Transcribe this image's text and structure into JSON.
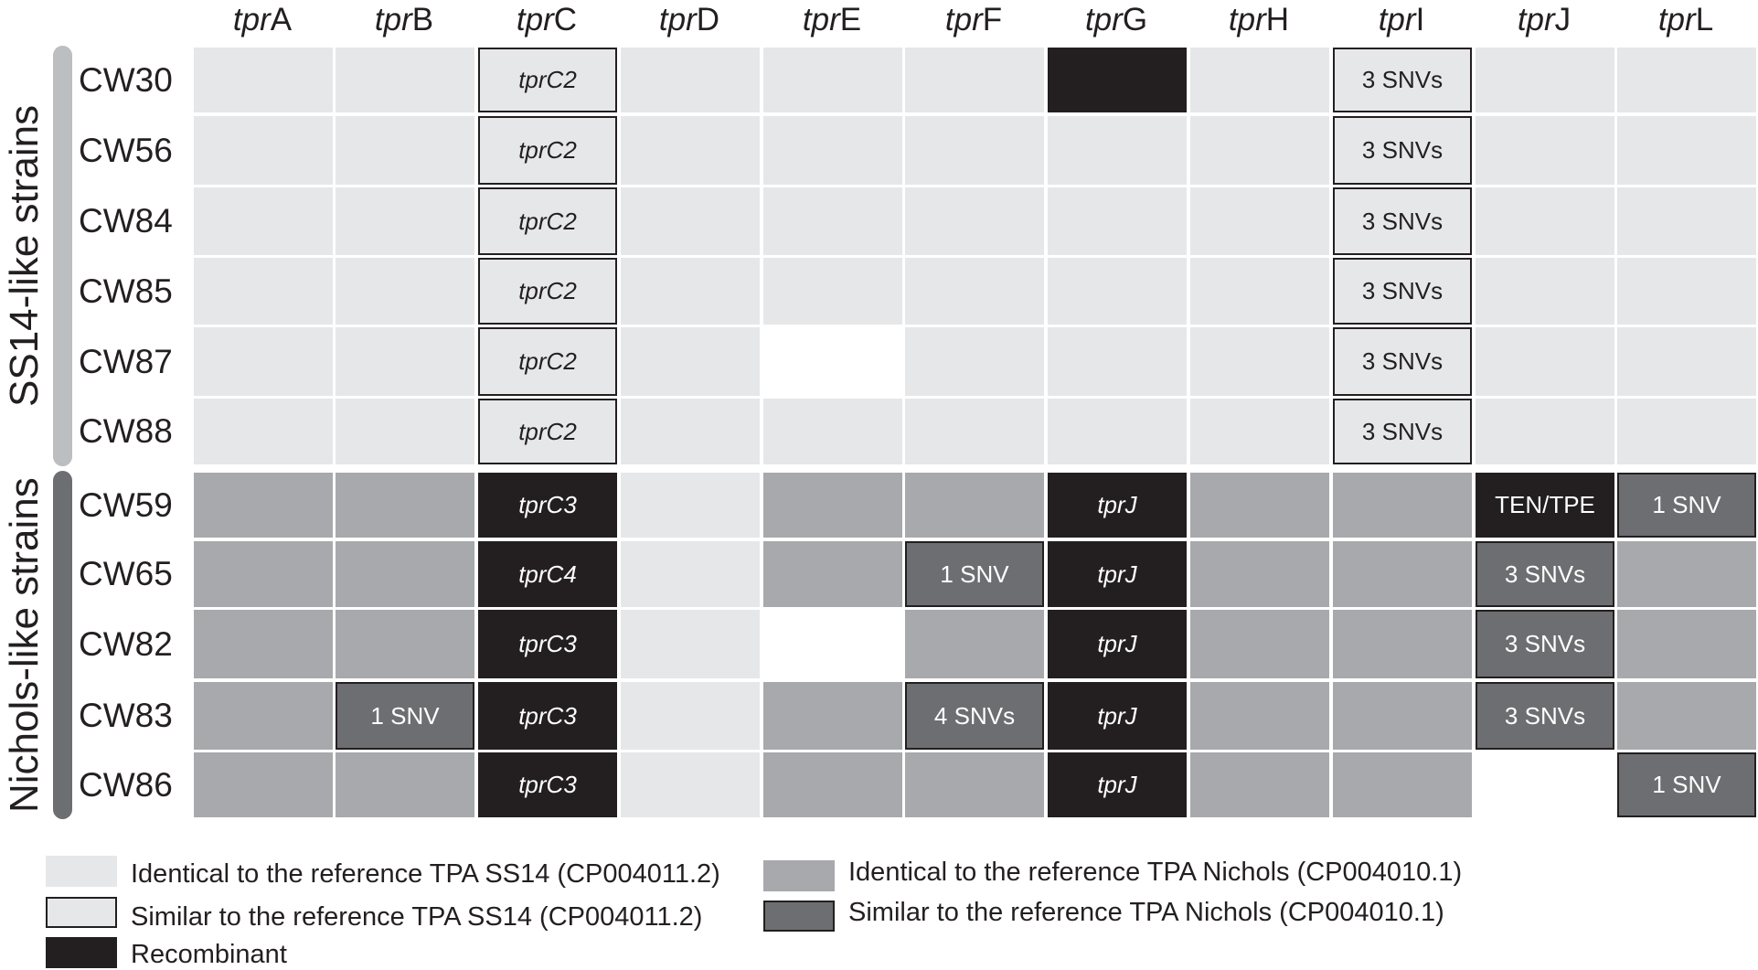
{
  "colors": {
    "ss14_identical": "#e6e7e8",
    "ss14_similar": "#e6e7e8",
    "nichols_identical": "#a7a9ac",
    "nichols_similar": "#6d6e71",
    "recombinant": "#231f20",
    "missing": "#ffffff",
    "light_text": "#ffffff",
    "dark_text": "#231f20"
  },
  "columns": [
    {
      "prefix": "tpr",
      "suffix": "A"
    },
    {
      "prefix": "tpr",
      "suffix": "B"
    },
    {
      "prefix": "tpr",
      "suffix": "C"
    },
    {
      "prefix": "tpr",
      "suffix": "D"
    },
    {
      "prefix": "tpr",
      "suffix": "E"
    },
    {
      "prefix": "tpr",
      "suffix": "F"
    },
    {
      "prefix": "tpr",
      "suffix": "G"
    },
    {
      "prefix": "tpr",
      "suffix": "H"
    },
    {
      "prefix": "tpr",
      "suffix": "I"
    },
    {
      "prefix": "tpr",
      "suffix": "J"
    },
    {
      "prefix": "tpr",
      "suffix": "L"
    }
  ],
  "groups": [
    {
      "label": "SS14-like strains",
      "bar_color": "#bcbec0",
      "rows": [
        0,
        5
      ]
    },
    {
      "label": "Nichols-like strains",
      "bar_color": "#6d6e71",
      "rows": [
        6,
        10
      ]
    }
  ],
  "rows": [
    {
      "strain": "CW30",
      "cells": [
        {
          "type": "ss14_identical"
        },
        {
          "type": "ss14_identical"
        },
        {
          "type": "ss14_similar",
          "text": "tprC2",
          "italic": true
        },
        {
          "type": "ss14_identical"
        },
        {
          "type": "ss14_identical"
        },
        {
          "type": "ss14_identical"
        },
        {
          "type": "recombinant"
        },
        {
          "type": "ss14_identical"
        },
        {
          "type": "ss14_similar",
          "text": "3 SNVs"
        },
        {
          "type": "ss14_identical"
        },
        {
          "type": "ss14_identical"
        }
      ]
    },
    {
      "strain": "CW56",
      "cells": [
        {
          "type": "ss14_identical"
        },
        {
          "type": "ss14_identical"
        },
        {
          "type": "ss14_similar",
          "text": "tprC2",
          "italic": true
        },
        {
          "type": "ss14_identical"
        },
        {
          "type": "ss14_identical"
        },
        {
          "type": "ss14_identical"
        },
        {
          "type": "ss14_identical"
        },
        {
          "type": "ss14_identical"
        },
        {
          "type": "ss14_similar",
          "text": "3 SNVs"
        },
        {
          "type": "ss14_identical"
        },
        {
          "type": "ss14_identical"
        }
      ]
    },
    {
      "strain": "CW84",
      "cells": [
        {
          "type": "ss14_identical"
        },
        {
          "type": "ss14_identical"
        },
        {
          "type": "ss14_similar",
          "text": "tprC2",
          "italic": true
        },
        {
          "type": "ss14_identical"
        },
        {
          "type": "ss14_identical"
        },
        {
          "type": "ss14_identical"
        },
        {
          "type": "ss14_identical"
        },
        {
          "type": "ss14_identical"
        },
        {
          "type": "ss14_similar",
          "text": "3 SNVs"
        },
        {
          "type": "ss14_identical"
        },
        {
          "type": "ss14_identical"
        }
      ]
    },
    {
      "strain": "CW85",
      "cells": [
        {
          "type": "ss14_identical"
        },
        {
          "type": "ss14_identical"
        },
        {
          "type": "ss14_similar",
          "text": "tprC2",
          "italic": true
        },
        {
          "type": "ss14_identical"
        },
        {
          "type": "ss14_identical"
        },
        {
          "type": "ss14_identical"
        },
        {
          "type": "ss14_identical"
        },
        {
          "type": "ss14_identical"
        },
        {
          "type": "ss14_similar",
          "text": "3 SNVs"
        },
        {
          "type": "ss14_identical"
        },
        {
          "type": "ss14_identical"
        }
      ]
    },
    {
      "strain": "CW87",
      "cells": [
        {
          "type": "ss14_identical"
        },
        {
          "type": "ss14_identical"
        },
        {
          "type": "ss14_similar",
          "text": "tprC2",
          "italic": true
        },
        {
          "type": "ss14_identical"
        },
        {
          "type": "missing"
        },
        {
          "type": "ss14_identical"
        },
        {
          "type": "ss14_identical"
        },
        {
          "type": "ss14_identical"
        },
        {
          "type": "ss14_similar",
          "text": "3 SNVs"
        },
        {
          "type": "ss14_identical"
        },
        {
          "type": "ss14_identical"
        }
      ]
    },
    {
      "strain": "CW88",
      "cells": [
        {
          "type": "ss14_identical"
        },
        {
          "type": "ss14_identical"
        },
        {
          "type": "ss14_similar",
          "text": "tprC2",
          "italic": true
        },
        {
          "type": "ss14_identical"
        },
        {
          "type": "ss14_identical"
        },
        {
          "type": "ss14_identical"
        },
        {
          "type": "ss14_identical"
        },
        {
          "type": "ss14_identical"
        },
        {
          "type": "ss14_similar",
          "text": "3 SNVs"
        },
        {
          "type": "ss14_identical"
        },
        {
          "type": "ss14_identical"
        }
      ]
    },
    {
      "strain": "CW59",
      "cells": [
        {
          "type": "nichols_identical"
        },
        {
          "type": "nichols_identical"
        },
        {
          "type": "recombinant",
          "text": "tprC3",
          "italic": true
        },
        {
          "type": "ss14_identical"
        },
        {
          "type": "nichols_identical"
        },
        {
          "type": "nichols_identical"
        },
        {
          "type": "recombinant",
          "text": "tprJ",
          "italic": true
        },
        {
          "type": "nichols_identical"
        },
        {
          "type": "nichols_identical"
        },
        {
          "type": "recombinant",
          "text": "TEN/TPE"
        },
        {
          "type": "nichols_similar",
          "text": "1 SNV"
        }
      ]
    },
    {
      "strain": "CW65",
      "cells": [
        {
          "type": "nichols_identical"
        },
        {
          "type": "nichols_identical"
        },
        {
          "type": "recombinant",
          "text": "tprC4",
          "italic": true
        },
        {
          "type": "ss14_identical"
        },
        {
          "type": "nichols_identical"
        },
        {
          "type": "nichols_similar",
          "text": "1 SNV"
        },
        {
          "type": "recombinant",
          "text": "tprJ",
          "italic": true
        },
        {
          "type": "nichols_identical"
        },
        {
          "type": "nichols_identical"
        },
        {
          "type": "nichols_similar",
          "text": "3 SNVs"
        },
        {
          "type": "nichols_identical"
        }
      ]
    },
    {
      "strain": "CW82",
      "cells": [
        {
          "type": "nichols_identical"
        },
        {
          "type": "nichols_identical"
        },
        {
          "type": "recombinant",
          "text": "tprC3",
          "italic": true
        },
        {
          "type": "ss14_identical"
        },
        {
          "type": "missing"
        },
        {
          "type": "nichols_identical"
        },
        {
          "type": "recombinant",
          "text": "tprJ",
          "italic": true
        },
        {
          "type": "nichols_identical"
        },
        {
          "type": "nichols_identical"
        },
        {
          "type": "nichols_similar",
          "text": "3 SNVs"
        },
        {
          "type": "nichols_identical"
        }
      ]
    },
    {
      "strain": "CW83",
      "cells": [
        {
          "type": "nichols_identical"
        },
        {
          "type": "nichols_similar",
          "text": "1 SNV"
        },
        {
          "type": "recombinant",
          "text": "tprC3",
          "italic": true
        },
        {
          "type": "ss14_identical"
        },
        {
          "type": "nichols_identical"
        },
        {
          "type": "nichols_similar",
          "text": "4 SNVs"
        },
        {
          "type": "recombinant",
          "text": "tprJ",
          "italic": true
        },
        {
          "type": "nichols_identical"
        },
        {
          "type": "nichols_identical"
        },
        {
          "type": "nichols_similar",
          "text": "3 SNVs"
        },
        {
          "type": "nichols_identical"
        }
      ]
    },
    {
      "strain": "CW86",
      "cells": [
        {
          "type": "nichols_identical"
        },
        {
          "type": "nichols_identical"
        },
        {
          "type": "recombinant",
          "text": "tprC3",
          "italic": true
        },
        {
          "type": "ss14_identical"
        },
        {
          "type": "nichols_identical"
        },
        {
          "type": "nichols_identical"
        },
        {
          "type": "recombinant",
          "text": "tprJ",
          "italic": true
        },
        {
          "type": "nichols_identical"
        },
        {
          "type": "nichols_identical"
        },
        {
          "type": "missing"
        },
        {
          "type": "nichols_similar",
          "text": "1 SNV"
        }
      ]
    }
  ],
  "legend": [
    {
      "type": "ss14_identical",
      "label": "Identical to the reference TPA SS14 (CP004011.2)"
    },
    {
      "type": "ss14_similar",
      "label": "Similar to the reference TPA SS14 (CP004011.2)"
    },
    {
      "type": "recombinant",
      "label": "Recombinant"
    },
    {
      "type": "nichols_identical",
      "label": "Identical to the reference TPA Nichols (CP004010.1)"
    },
    {
      "type": "nichols_similar",
      "label": "Similar to the reference TPA Nichols (CP004010.1)"
    }
  ]
}
